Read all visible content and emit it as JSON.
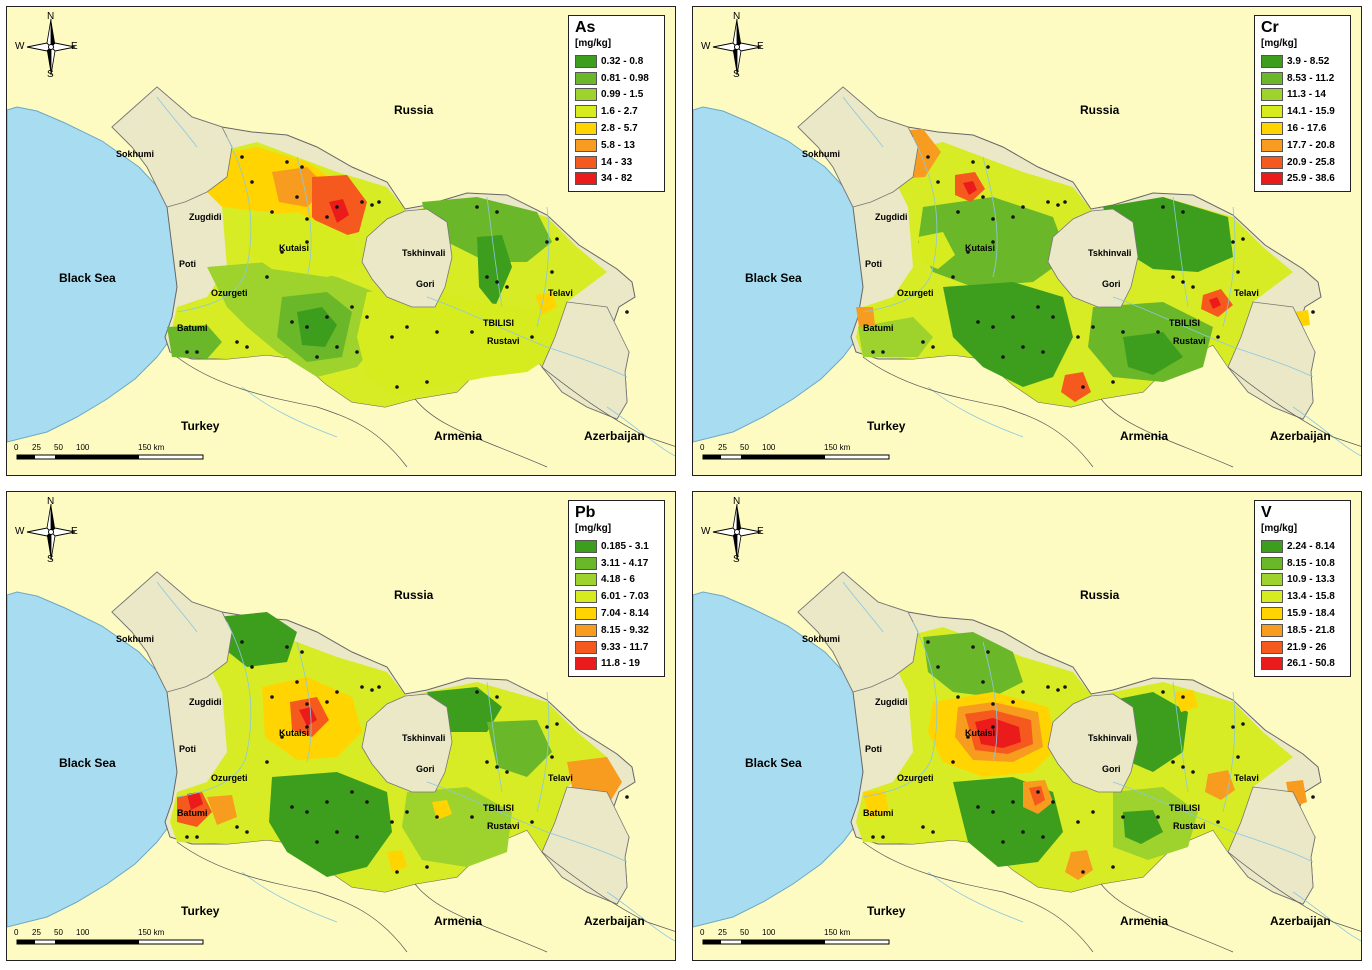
{
  "compass": {
    "n": "N",
    "s": "S",
    "e": "E",
    "w": "W",
    "icon": "compass-rose-icon"
  },
  "scale": {
    "ticks": [
      "0",
      "25",
      "50",
      "100",
      "150 km"
    ]
  },
  "places": {
    "russia": "Russia",
    "turkey": "Turkey",
    "armenia": "Armenia",
    "azerbaijan": "Azerbaijan",
    "black_sea": "Black Sea",
    "sokhumi": "Sokhumi",
    "zugdidi": "Zugdidi",
    "kutaisi": "Kutaisi",
    "poti": "Poti",
    "ozurgeti": "Ozurgeti",
    "batumi": "Batumi",
    "tskhinvali": "Tskhinvali",
    "gori": "Gori",
    "tbilisi": "TBILISI",
    "rustavi": "Rustavi",
    "telavi": "Telavi"
  },
  "colors": {
    "background": "#fdfbc2",
    "sea": "#a8dcf0",
    "neighbor_land": "#eae8c6",
    "class_1": "#3d9e1d",
    "class_2": "#6ab82a",
    "class_3": "#9ed22c",
    "class_4": "#d7ec1e",
    "class_5": "#ffd400",
    "class_6": "#f89c1f",
    "class_7": "#f5591d",
    "class_8": "#ec1b1b"
  },
  "panels": [
    {
      "id": "As",
      "title": "As",
      "unit": "[mg/kg]",
      "classes": [
        "0.32 - 0.8",
        "0.81 - 0.98",
        "0.99 - 1.5",
        "1.6 - 2.7",
        "2.8 - 5.7",
        "5.8 - 13",
        "14 - 33",
        "34 - 82"
      ]
    },
    {
      "id": "Cr",
      "title": "Cr",
      "unit": "[mg/kg]",
      "classes": [
        "3.9 - 8.52",
        "8.53 - 11.2",
        "11.3 - 14",
        "14.1 - 15.9",
        "16 - 17.6",
        "17.7 - 20.8",
        "20.9 - 25.8",
        "25.9 - 38.6"
      ]
    },
    {
      "id": "Pb",
      "title": "Pb",
      "unit": "[mg/kg]",
      "classes": [
        "0.185 - 3.1",
        "3.11 - 4.17",
        "4.18 - 6",
        "6.01 - 7.03",
        "7.04 - 8.14",
        "8.15 - 9.32",
        "9.33 - 11.7",
        "11.8 - 19"
      ]
    },
    {
      "id": "V",
      "title": "V",
      "unit": "[mg/kg]",
      "classes": [
        "2.24 - 8.14",
        "8.15 - 10.8",
        "10.9 - 13.3",
        "13.4 - 15.8",
        "15.9 - 18.4",
        "18.5 - 21.8",
        "21.9 - 26",
        "26.1 - 50.8"
      ]
    }
  ]
}
